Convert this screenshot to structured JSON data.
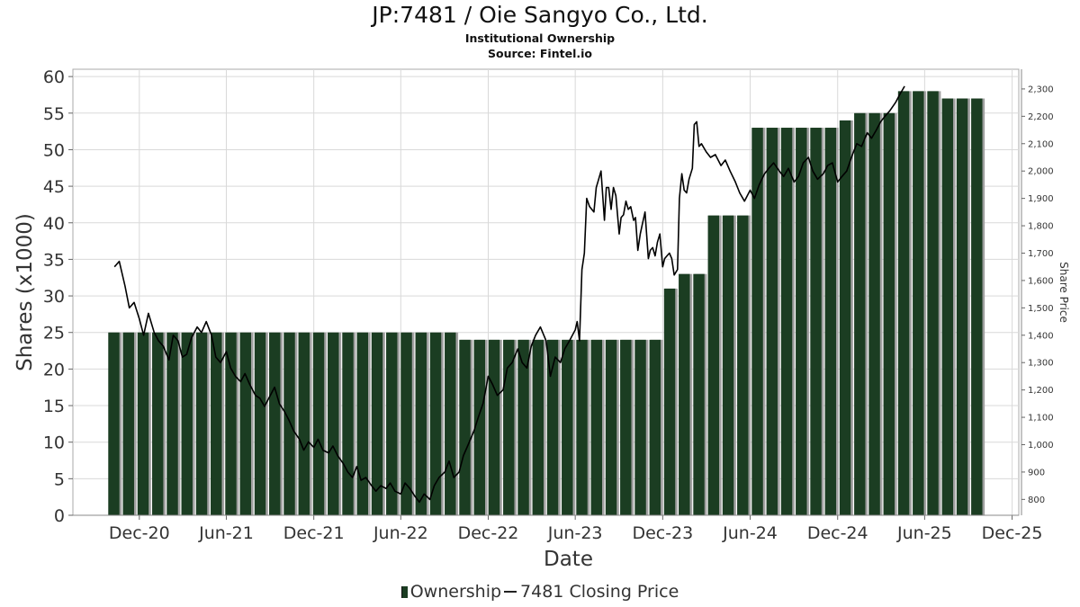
{
  "header": {
    "title": "JP:7481 / Oie Sangyo Co., Ltd.",
    "subtitle": "Institutional Ownership",
    "source": "Source: Fintel.io"
  },
  "legend": {
    "ownership": "Ownership",
    "price": "7481 Closing Price"
  },
  "colors": {
    "bar": "#1b3d22",
    "bar_edge": "#a0a0a0",
    "line": "#000000",
    "grid": "#d9d9d9"
  },
  "chart_data": {
    "type": "bar",
    "title": "JP:7481 / Oie Sangyo Co., Ltd.",
    "subtitle": "Institutional Ownership",
    "xlabel": "Date",
    "ylabel": "Shares (x1000)",
    "y2label": "Share Price",
    "grid": true,
    "legend_position": "bottom",
    "xlim": [
      "2020-07-15",
      "2025-12-15"
    ],
    "x_ticks": [
      "Dec-20",
      "Jun-21",
      "Dec-21",
      "Jun-22",
      "Dec-22",
      "Jun-23",
      "Dec-23",
      "Jun-24",
      "Dec-24",
      "Jun-25",
      "Dec-25"
    ],
    "x_tick_dates": [
      "2020-12-01",
      "2021-06-01",
      "2021-12-01",
      "2022-06-01",
      "2022-12-01",
      "2023-06-01",
      "2023-12-01",
      "2024-06-01",
      "2024-12-01",
      "2025-06-01",
      "2025-12-01"
    ],
    "ylim": [
      0,
      61
    ],
    "y_ticks": [
      "0",
      "5",
      "10",
      "15",
      "20",
      "25",
      "30",
      "35",
      "40",
      "45",
      "50",
      "55",
      "60"
    ],
    "y2lim": [
      742,
      2372
    ],
    "y2_ticks": [
      "800",
      "900",
      "1,000",
      "1,100",
      "1,200",
      "1,300",
      "1,400",
      "1,500",
      "1,600",
      "1,700",
      "1,800",
      "1,900",
      "2,000",
      "2,100",
      "2,200",
      "2,300"
    ],
    "series": [
      {
        "name": "Ownership",
        "type": "bar",
        "start": "2020-10-10",
        "bar_spacing_days": 30.6,
        "values": [
          25,
          25,
          25,
          25,
          25,
          25,
          25,
          25,
          25,
          25,
          25,
          25,
          25,
          25,
          25,
          25,
          25,
          25,
          25,
          25,
          25,
          25,
          25,
          25,
          24,
          24,
          24,
          24,
          24,
          24,
          24,
          24,
          24,
          24,
          24,
          24,
          24,
          24,
          31,
          33,
          33,
          41,
          41,
          41,
          53,
          53,
          53,
          53,
          53,
          53,
          54,
          55,
          55,
          55,
          58,
          58,
          58,
          57,
          57,
          57
        ]
      },
      {
        "name": "7481 Closing Price",
        "type": "line",
        "points": [
          [
            "2020-10-10",
            1650
          ],
          [
            "2020-10-20",
            1670
          ],
          [
            "2020-11-01",
            1580
          ],
          [
            "2020-11-10",
            1500
          ],
          [
            "2020-11-20",
            1520
          ],
          [
            "2020-12-01",
            1460
          ],
          [
            "2020-12-10",
            1400
          ],
          [
            "2020-12-20",
            1480
          ],
          [
            "2021-01-01",
            1410
          ],
          [
            "2021-01-10",
            1380
          ],
          [
            "2021-01-20",
            1360
          ],
          [
            "2021-02-01",
            1310
          ],
          [
            "2021-02-10",
            1400
          ],
          [
            "2021-02-20",
            1380
          ],
          [
            "2021-03-01",
            1320
          ],
          [
            "2021-03-10",
            1330
          ],
          [
            "2021-03-20",
            1390
          ],
          [
            "2021-04-01",
            1430
          ],
          [
            "2021-04-10",
            1410
          ],
          [
            "2021-04-20",
            1450
          ],
          [
            "2021-05-01",
            1400
          ],
          [
            "2021-05-10",
            1320
          ],
          [
            "2021-05-20",
            1300
          ],
          [
            "2021-06-01",
            1340
          ],
          [
            "2021-06-10",
            1280
          ],
          [
            "2021-06-20",
            1250
          ],
          [
            "2021-07-01",
            1230
          ],
          [
            "2021-07-10",
            1260
          ],
          [
            "2021-07-20",
            1220
          ],
          [
            "2021-08-01",
            1180
          ],
          [
            "2021-08-10",
            1170
          ],
          [
            "2021-08-20",
            1140
          ],
          [
            "2021-09-01",
            1180
          ],
          [
            "2021-09-10",
            1210
          ],
          [
            "2021-09-20",
            1150
          ],
          [
            "2021-10-01",
            1120
          ],
          [
            "2021-10-10",
            1090
          ],
          [
            "2021-10-20",
            1050
          ],
          [
            "2021-11-01",
            1020
          ],
          [
            "2021-11-10",
            980
          ],
          [
            "2021-11-20",
            1010
          ],
          [
            "2021-12-01",
            990
          ],
          [
            "2021-12-10",
            1020
          ],
          [
            "2021-12-20",
            980
          ],
          [
            "2022-01-01",
            970
          ],
          [
            "2022-01-10",
            995
          ],
          [
            "2022-01-20",
            960
          ],
          [
            "2022-02-01",
            930
          ],
          [
            "2022-02-10",
            900
          ],
          [
            "2022-02-20",
            880
          ],
          [
            "2022-03-01",
            920
          ],
          [
            "2022-03-10",
            870
          ],
          [
            "2022-03-20",
            880
          ],
          [
            "2022-04-01",
            850
          ],
          [
            "2022-04-10",
            830
          ],
          [
            "2022-04-20",
            850
          ],
          [
            "2022-05-01",
            840
          ],
          [
            "2022-05-10",
            860
          ],
          [
            "2022-05-20",
            830
          ],
          [
            "2022-06-01",
            820
          ],
          [
            "2022-06-10",
            860
          ],
          [
            "2022-06-20",
            840
          ],
          [
            "2022-07-01",
            810
          ],
          [
            "2022-07-10",
            790
          ],
          [
            "2022-07-20",
            820
          ],
          [
            "2022-08-01",
            800
          ],
          [
            "2022-08-10",
            850
          ],
          [
            "2022-08-20",
            880
          ],
          [
            "2022-09-01",
            900
          ],
          [
            "2022-09-10",
            940
          ],
          [
            "2022-09-20",
            880
          ],
          [
            "2022-10-01",
            900
          ],
          [
            "2022-10-10",
            960
          ],
          [
            "2022-10-20",
            1000
          ],
          [
            "2022-11-01",
            1050
          ],
          [
            "2022-11-10",
            1100
          ],
          [
            "2022-11-20",
            1150
          ],
          [
            "2022-12-01",
            1250
          ],
          [
            "2022-12-10",
            1220
          ],
          [
            "2022-12-20",
            1180
          ],
          [
            "2023-01-01",
            1200
          ],
          [
            "2023-01-10",
            1280
          ],
          [
            "2023-01-20",
            1300
          ],
          [
            "2023-02-01",
            1350
          ],
          [
            "2023-02-10",
            1300
          ],
          [
            "2023-02-20",
            1280
          ],
          [
            "2023-03-01",
            1360
          ],
          [
            "2023-03-10",
            1400
          ],
          [
            "2023-03-20",
            1430
          ],
          [
            "2023-04-01",
            1380
          ],
          [
            "2023-04-10",
            1250
          ],
          [
            "2023-04-20",
            1320
          ],
          [
            "2023-05-01",
            1300
          ],
          [
            "2023-05-10",
            1350
          ],
          [
            "2023-05-20",
            1380
          ],
          [
            "2023-06-01",
            1420
          ],
          [
            "2023-06-05",
            1450
          ],
          [
            "2023-06-10",
            1380
          ],
          [
            "2023-06-15",
            1640
          ],
          [
            "2023-06-20",
            1700
          ],
          [
            "2023-06-25",
            1900
          ],
          [
            "2023-07-01",
            1870
          ],
          [
            "2023-07-10",
            1850
          ],
          [
            "2023-07-15",
            1940
          ],
          [
            "2023-07-20",
            1970
          ],
          [
            "2023-07-25",
            2000
          ],
          [
            "2023-08-01",
            1820
          ],
          [
            "2023-08-05",
            1940
          ],
          [
            "2023-08-10",
            1940
          ],
          [
            "2023-08-15",
            1860
          ],
          [
            "2023-08-20",
            1940
          ],
          [
            "2023-08-25",
            1910
          ],
          [
            "2023-09-01",
            1770
          ],
          [
            "2023-09-05",
            1830
          ],
          [
            "2023-09-10",
            1840
          ],
          [
            "2023-09-15",
            1890
          ],
          [
            "2023-09-20",
            1860
          ],
          [
            "2023-09-25",
            1870
          ],
          [
            "2023-10-01",
            1820
          ],
          [
            "2023-10-05",
            1830
          ],
          [
            "2023-10-10",
            1710
          ],
          [
            "2023-10-15",
            1770
          ],
          [
            "2023-10-20",
            1810
          ],
          [
            "2023-10-25",
            1850
          ],
          [
            "2023-11-01",
            1680
          ],
          [
            "2023-11-05",
            1710
          ],
          [
            "2023-11-10",
            1720
          ],
          [
            "2023-11-15",
            1690
          ],
          [
            "2023-11-20",
            1740
          ],
          [
            "2023-11-25",
            1770
          ],
          [
            "2023-12-01",
            1650
          ],
          [
            "2023-12-05",
            1680
          ],
          [
            "2023-12-10",
            1690
          ],
          [
            "2023-12-15",
            1700
          ],
          [
            "2023-12-20",
            1680
          ],
          [
            "2023-12-25",
            1620
          ],
          [
            "2024-01-01",
            1640
          ],
          [
            "2024-01-05",
            1900
          ],
          [
            "2024-01-10",
            1990
          ],
          [
            "2024-01-15",
            1930
          ],
          [
            "2024-01-20",
            1920
          ],
          [
            "2024-01-25",
            1970
          ],
          [
            "2024-02-01",
            2010
          ],
          [
            "2024-02-05",
            2170
          ],
          [
            "2024-02-10",
            2180
          ],
          [
            "2024-02-15",
            2090
          ],
          [
            "2024-02-20",
            2100
          ],
          [
            "2024-03-01",
            2070
          ],
          [
            "2024-03-10",
            2050
          ],
          [
            "2024-03-20",
            2060
          ],
          [
            "2024-04-01",
            2020
          ],
          [
            "2024-04-10",
            2040
          ],
          [
            "2024-04-20",
            2000
          ],
          [
            "2024-05-01",
            1960
          ],
          [
            "2024-05-10",
            1920
          ],
          [
            "2024-05-20",
            1890
          ],
          [
            "2024-06-01",
            1930
          ],
          [
            "2024-06-10",
            1900
          ],
          [
            "2024-06-20",
            1950
          ],
          [
            "2024-07-01",
            1990
          ],
          [
            "2024-07-10",
            2010
          ],
          [
            "2024-07-20",
            2030
          ],
          [
            "2024-08-01",
            2000
          ],
          [
            "2024-08-10",
            1980
          ],
          [
            "2024-08-20",
            2010
          ],
          [
            "2024-09-01",
            1960
          ],
          [
            "2024-09-10",
            1980
          ],
          [
            "2024-09-20",
            2030
          ],
          [
            "2024-10-01",
            2050
          ],
          [
            "2024-10-10",
            2000
          ],
          [
            "2024-10-20",
            1970
          ],
          [
            "2024-11-01",
            1990
          ],
          [
            "2024-11-10",
            2020
          ],
          [
            "2024-11-20",
            2030
          ],
          [
            "2024-12-01",
            1960
          ],
          [
            "2024-12-10",
            1980
          ],
          [
            "2024-12-20",
            2000
          ],
          [
            "2025-01-01",
            2060
          ],
          [
            "2025-01-10",
            2100
          ],
          [
            "2025-01-20",
            2090
          ],
          [
            "2025-02-01",
            2140
          ],
          [
            "2025-02-10",
            2120
          ],
          [
            "2025-02-20",
            2150
          ],
          [
            "2025-03-01",
            2180
          ],
          [
            "2025-03-10",
            2200
          ],
          [
            "2025-03-20",
            2220
          ],
          [
            "2025-04-01",
            2250
          ],
          [
            "2025-04-10",
            2280
          ],
          [
            "2025-04-20",
            2310
          ]
        ]
      }
    ]
  }
}
